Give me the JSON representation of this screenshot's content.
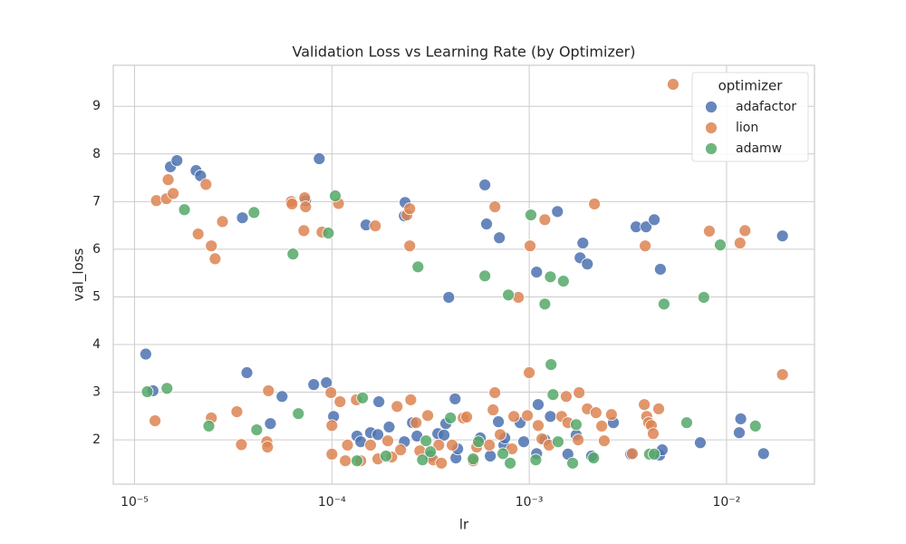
{
  "chart_data": {
    "type": "scatter",
    "title": "Validation Loss vs Learning Rate (by Optimizer)",
    "x_label": "lr",
    "y_label": "val_loss",
    "xscale": "log",
    "grid": true,
    "legend_title": "optimizer",
    "legend_loc": "upper right",
    "xlim": [
      7.8e-06,
      0.0279
    ],
    "ylim": [
      1.07,
      9.86
    ],
    "xticks": [
      {
        "value": 1e-05,
        "label": "10⁻⁵"
      },
      {
        "value": 0.0001,
        "label": "10⁻⁴"
      },
      {
        "value": 0.001,
        "label": "10⁻³"
      },
      {
        "value": 0.01,
        "label": "10⁻²"
      }
    ],
    "yticks": [
      2,
      3,
      4,
      5,
      6,
      7,
      8,
      9
    ],
    "series": [
      {
        "name": "adafactor",
        "color": "#4c72b0",
        "x": [
          1.14e-05,
          1.24e-05,
          1.52e-05,
          1.64e-05,
          2.05e-05,
          2.16e-05,
          3.52e-05,
          3.71e-05,
          4.88e-05,
          5.59e-05,
          7.36e-05,
          8.09e-05,
          8.63e-05,
          9.38e-05,
          0.000102,
          0.000134,
          0.00014,
          0.000149,
          0.000157,
          0.000171,
          0.000173,
          0.000195,
          0.000233,
          0.000235,
          0.000233,
          0.000256,
          0.00027,
          0.000316,
          0.000344,
          0.00037,
          0.000378,
          0.000391,
          0.000421,
          0.000425,
          0.000434,
          0.000565,
          0.000596,
          0.000608,
          0.000635,
          0.000698,
          0.000706,
          0.000744,
          0.000752,
          0.000899,
          0.000938,
          0.00109,
          0.00111,
          0.00109,
          0.0012,
          0.00128,
          0.00139,
          0.00157,
          0.00173,
          0.00181,
          0.00187,
          0.00197,
          0.00207,
          0.00267,
          0.00327,
          0.00348,
          0.00391,
          0.0043,
          0.00458,
          0.00462,
          0.00472,
          0.00736,
          0.0116,
          0.0118,
          0.0154,
          0.0192
        ],
        "values": [
          3.8,
          3.03,
          7.73,
          7.86,
          7.65,
          7.54,
          6.66,
          3.41,
          2.34,
          2.91,
          7.02,
          3.16,
          7.9,
          3.2,
          2.49,
          2.08,
          1.96,
          6.51,
          2.15,
          2.11,
          2.8,
          2.27,
          1.96,
          6.98,
          6.7,
          2.36,
          2.08,
          1.66,
          2.13,
          2.1,
          2.34,
          4.99,
          2.86,
          1.62,
          1.81,
          2.04,
          7.35,
          6.53,
          1.66,
          2.38,
          6.24,
          1.89,
          2.04,
          2.36,
          1.96,
          5.52,
          2.74,
          1.71,
          2.0,
          2.49,
          6.79,
          1.7,
          2.1,
          5.82,
          6.13,
          5.69,
          1.66,
          2.36,
          1.7,
          6.47,
          6.47,
          6.62,
          1.68,
          5.58,
          1.79,
          1.94,
          2.15,
          2.44,
          1.71,
          6.28
        ]
      },
      {
        "name": "lion",
        "color": "#dd8452",
        "x": [
          1.29e-05,
          1.27e-05,
          1.45e-05,
          1.48e-05,
          1.57e-05,
          2.1e-05,
          2.3e-05,
          2.45e-05,
          2.45e-05,
          2.56e-05,
          2.79e-05,
          3.3e-05,
          3.48e-05,
          4.68e-05,
          4.72e-05,
          4.77e-05,
          6.22e-05,
          6.28e-05,
          7.21e-05,
          7.28e-05,
          7.36e-05,
          8.91e-05,
          9.89e-05,
          0.0001,
          0.0001,
          0.000108,
          0.00011,
          0.000117,
          0.00012,
          0.000133,
          0.00014,
          0.000157,
          0.000166,
          0.000171,
          0.000192,
          0.000201,
          0.000214,
          0.000223,
          0.00024,
          0.000248,
          0.000248,
          0.000251,
          0.000267,
          0.000279,
          0.000306,
          0.000326,
          0.000348,
          0.000359,
          0.000407,
          0.000463,
          0.000482,
          0.00052,
          0.000542,
          0.000628,
          0.000656,
          0.00067,
          0.00067,
          0.000713,
          0.000818,
          0.000836,
          0.000881,
          0.001,
          0.00101,
          0.000979,
          0.00111,
          0.00116,
          0.0012,
          0.00126,
          0.00146,
          0.00154,
          0.00157,
          0.00177,
          0.00179,
          0.00197,
          0.00214,
          0.00218,
          0.00233,
          0.0024,
          0.00261,
          0.00333,
          0.00383,
          0.00387,
          0.00394,
          0.00403,
          0.00416,
          0.00425,
          0.00453,
          0.00536,
          0.00818,
          0.0117,
          0.0124,
          0.0192
        ],
        "values": [
          7.02,
          2.4,
          7.06,
          7.46,
          7.17,
          6.32,
          7.36,
          2.46,
          6.07,
          5.8,
          6.58,
          2.59,
          1.9,
          1.96,
          1.85,
          3.03,
          7.0,
          6.95,
          6.39,
          7.08,
          6.89,
          6.36,
          2.99,
          2.3,
          1.7,
          6.96,
          2.8,
          1.56,
          1.89,
          2.84,
          1.56,
          1.89,
          6.49,
          1.6,
          1.98,
          1.64,
          2.7,
          1.79,
          6.72,
          6.85,
          6.07,
          2.84,
          2.36,
          1.77,
          2.51,
          1.58,
          1.89,
          1.51,
          1.89,
          2.46,
          2.48,
          1.56,
          1.85,
          1.89,
          2.63,
          6.89,
          2.99,
          2.11,
          1.81,
          2.49,
          4.99,
          3.41,
          6.07,
          2.51,
          2.3,
          2.02,
          6.62,
          1.89,
          2.49,
          2.91,
          2.36,
          2.0,
          2.99,
          2.65,
          6.95,
          2.57,
          2.29,
          1.98,
          2.53,
          1.71,
          2.74,
          6.07,
          2.49,
          2.36,
          2.3,
          2.13,
          2.65,
          9.46,
          6.38,
          6.13,
          6.39,
          3.37
        ]
      },
      {
        "name": "adamw",
        "color": "#55a868",
        "x": [
          1.16e-05,
          1.46e-05,
          1.79e-05,
          2.38e-05,
          4.03e-05,
          4.16e-05,
          6.35e-05,
          6.76e-05,
          9.59e-05,
          0.000104,
          0.000134,
          0.000143,
          0.000188,
          0.000273,
          0.000288,
          0.0003,
          0.000316,
          0.000399,
          0.00052,
          0.000553,
          0.000596,
          0.000736,
          0.000784,
          0.000801,
          0.00102,
          0.00108,
          0.0012,
          0.00128,
          0.00129,
          0.00132,
          0.0014,
          0.00149,
          0.00166,
          0.00173,
          0.00212,
          0.00407,
          0.0043,
          0.00482,
          0.00628,
          0.00767,
          0.00929,
          0.014
        ],
        "values": [
          3.01,
          3.08,
          6.83,
          2.29,
          6.77,
          2.21,
          5.9,
          2.55,
          6.34,
          7.12,
          1.56,
          2.88,
          1.66,
          5.63,
          1.58,
          1.98,
          1.75,
          2.46,
          1.6,
          1.96,
          5.44,
          1.71,
          5.04,
          1.51,
          6.72,
          1.58,
          4.85,
          5.42,
          3.58,
          2.95,
          1.96,
          5.33,
          1.51,
          2.32,
          1.62,
          1.7,
          1.7,
          4.85,
          2.36,
          4.99,
          6.09,
          2.29
        ]
      }
    ]
  }
}
